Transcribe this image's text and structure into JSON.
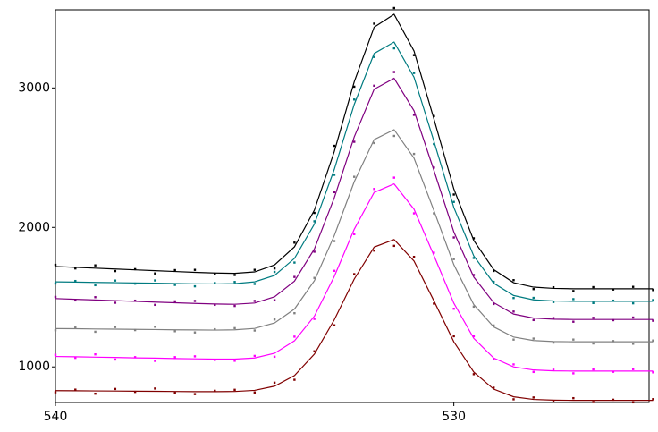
{
  "chart_data": {
    "type": "line",
    "x": [
      540,
      539.5,
      539,
      538.5,
      538,
      537.5,
      537,
      536.5,
      536,
      535.5,
      535,
      534.5,
      534,
      533.5,
      533,
      532.5,
      532,
      531.5,
      531,
      530.5,
      530,
      529.5,
      529,
      528.5,
      528,
      527.5,
      527,
      526.5,
      526,
      525.5,
      525
    ],
    "xlim": [
      540,
      525.1
    ],
    "xticks": [
      540,
      530
    ],
    "ylim": [
      745,
      3560
    ],
    "yticks": [
      1000,
      2000,
      3000
    ],
    "series": [
      {
        "color": "#000000",
        "values": [
          1720,
          1714,
          1708,
          1702,
          1696,
          1690,
          1684,
          1678,
          1673,
          1671,
          1681,
          1731,
          1861,
          2124,
          2545,
          3044,
          3436,
          3528,
          3265,
          2778,
          2276,
          1907,
          1698,
          1604,
          1572,
          1563,
          1560,
          1560,
          1560,
          1560,
          1560
        ],
        "point_values": [
          1732,
          1706,
          1728,
          1687,
          1701,
          1670,
          1694,
          1696,
          1667,
          1659,
          1696,
          1706,
          1891,
          2104,
          2585,
          3009,
          3461,
          3573,
          3235,
          2798,
          2236,
          1922,
          1688,
          1622,
          1558,
          1571,
          1544,
          1572,
          1555,
          1574,
          1551
        ]
      },
      {
        "color": "#007b80",
        "values": [
          1610,
          1608,
          1606,
          1604,
          1602,
          1600,
          1598,
          1596,
          1595,
          1597,
          1610,
          1656,
          1778,
          2024,
          2417,
          2882,
          3247,
          3329,
          3077,
          2618,
          2143,
          1796,
          1600,
          1512,
          1481,
          1473,
          1470,
          1470,
          1470,
          1470,
          1470
        ],
        "point_values": [
          1598,
          1616,
          1586,
          1619,
          1597,
          1620,
          1588,
          1578,
          1601,
          1609,
          1595,
          1681,
          1748,
          2044,
          2377,
          2917,
          3222,
          3284,
          3107,
          2598,
          2183,
          1781,
          1610,
          1494,
          1495,
          1465,
          1486,
          1458,
          1475,
          1456,
          1479
        ]
      },
      {
        "color": "#800080",
        "values": [
          1490,
          1485,
          1480,
          1475,
          1470,
          1465,
          1460,
          1455,
          1451,
          1449,
          1458,
          1503,
          1615,
          1846,
          2213,
          2649,
          2991,
          3069,
          2837,
          2409,
          1968,
          1644,
          1461,
          1379,
          1350,
          1342,
          1340,
          1340,
          1340,
          1340,
          1340
        ],
        "point_values": [
          1502,
          1477,
          1500,
          1460,
          1475,
          1445,
          1470,
          1473,
          1445,
          1437,
          1473,
          1478,
          1645,
          1826,
          2253,
          2614,
          3016,
          3114,
          2807,
          2429,
          1928,
          1659,
          1451,
          1397,
          1336,
          1350,
          1324,
          1352,
          1335,
          1354,
          1331
        ]
      },
      {
        "color": "#808080",
        "values": [
          1275,
          1274,
          1272,
          1271,
          1269,
          1268,
          1266,
          1265,
          1264,
          1266,
          1276,
          1315,
          1415,
          1618,
          1942,
          2328,
          2630,
          2701,
          2497,
          2121,
          1733,
          1447,
          1287,
          1214,
          1189,
          1182,
          1180,
          1180,
          1180,
          1180,
          1180
        ],
        "point_values": [
          1263,
          1282,
          1252,
          1286,
          1264,
          1288,
          1256,
          1247,
          1270,
          1278,
          1261,
          1340,
          1385,
          1638,
          1902,
          2363,
          2605,
          2656,
          2527,
          2101,
          1773,
          1432,
          1297,
          1196,
          1203,
          1174,
          1196,
          1168,
          1185,
          1166,
          1189
        ]
      },
      {
        "color": "#ff00ff",
        "values": [
          1075,
          1073,
          1070,
          1068,
          1065,
          1063,
          1060,
          1058,
          1056,
          1056,
          1064,
          1098,
          1187,
          1364,
          1649,
          1987,
          2251,
          2312,
          2131,
          1799,
          1457,
          1205,
          1064,
          1000,
          978,
          972,
          970,
          970,
          970,
          970,
          970
        ],
        "point_values": [
          1087,
          1065,
          1090,
          1053,
          1070,
          1043,
          1070,
          1076,
          1050,
          1044,
          1079,
          1073,
          1217,
          1344,
          1689,
          1952,
          2276,
          2357,
          2101,
          1819,
          1417,
          1220,
          1054,
          1018,
          964,
          980,
          954,
          982,
          965,
          984,
          961
        ]
      },
      {
        "color": "#800000",
        "values": [
          830,
          829,
          828,
          827,
          826,
          825,
          824,
          823,
          823,
          824,
          832,
          862,
          938,
          1092,
          1338,
          1630,
          1859,
          1913,
          1759,
          1474,
          1180,
          963,
          841,
          786,
          767,
          762,
          760,
          760,
          760,
          760,
          760
        ],
        "point_values": [
          818,
          837,
          808,
          842,
          821,
          845,
          814,
          805,
          829,
          836,
          817,
          887,
          908,
          1112,
          1298,
          1665,
          1834,
          1868,
          1789,
          1454,
          1220,
          948,
          851,
          768,
          781,
          754,
          776,
          748,
          765,
          746,
          769
        ]
      }
    ]
  }
}
